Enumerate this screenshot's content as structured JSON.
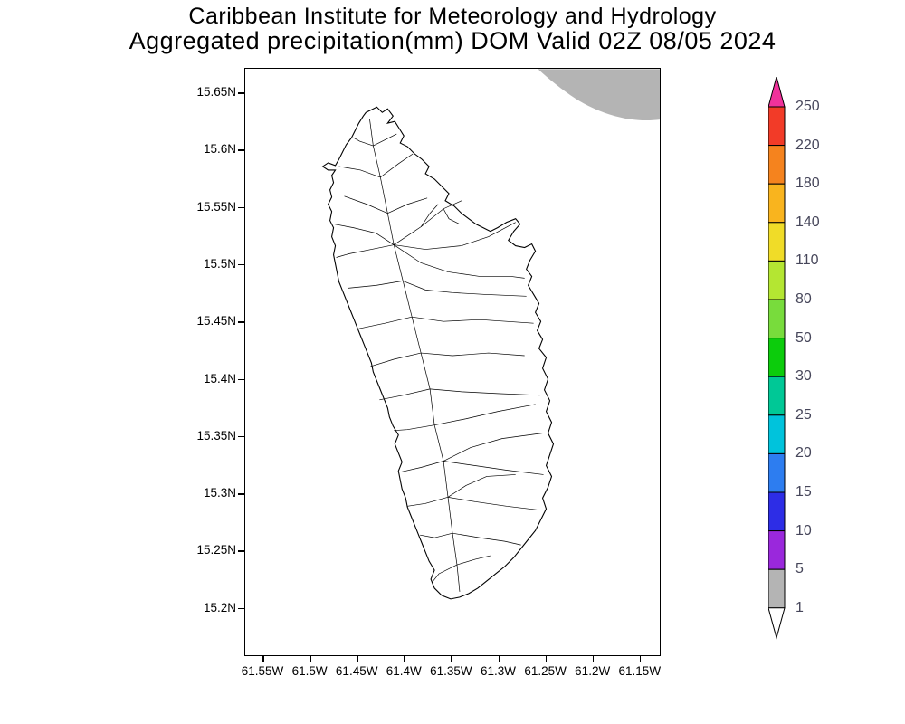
{
  "title": {
    "line1": "Caribbean Institute for Meteorology and Hydrology",
    "line2": "Aggregated precipitation(mm) DOM Valid 02Z 08/05 2024"
  },
  "map": {
    "region_code": "DOM",
    "y_axis_labels": [
      "15.65N",
      "15.6N",
      "15.55N",
      "15.5N",
      "15.45N",
      "15.4N",
      "15.35N",
      "15.3N",
      "15.25N",
      "15.2N"
    ],
    "x_axis_labels": [
      "61.55W",
      "61.5W",
      "61.45W",
      "61.4W",
      "61.35W",
      "61.3W",
      "61.25W",
      "61.2W",
      "61.15W"
    ]
  },
  "map_shading": {
    "light_precip_color": "#b4b4b4",
    "matches_scale_range": "1-5"
  },
  "colorbar": {
    "tick_labels": [
      "250",
      "220",
      "180",
      "140",
      "110",
      "80",
      "50",
      "30",
      "25",
      "20",
      "15",
      "10",
      "5",
      "1"
    ],
    "segment_colors_top_to_bottom": [
      "#f23b28",
      "#f5831e",
      "#f9b41e",
      "#f0dc28",
      "#b4e632",
      "#78dc3c",
      "#0ccc0c",
      "#00c896",
      "#00c3dc",
      "#2d7df0",
      "#2d2de6",
      "#9a28dc",
      "#b4b4b4"
    ],
    "above_max_color": "#f0329b",
    "below_min_color": "#ffffff",
    "outline_color": "#000000"
  }
}
